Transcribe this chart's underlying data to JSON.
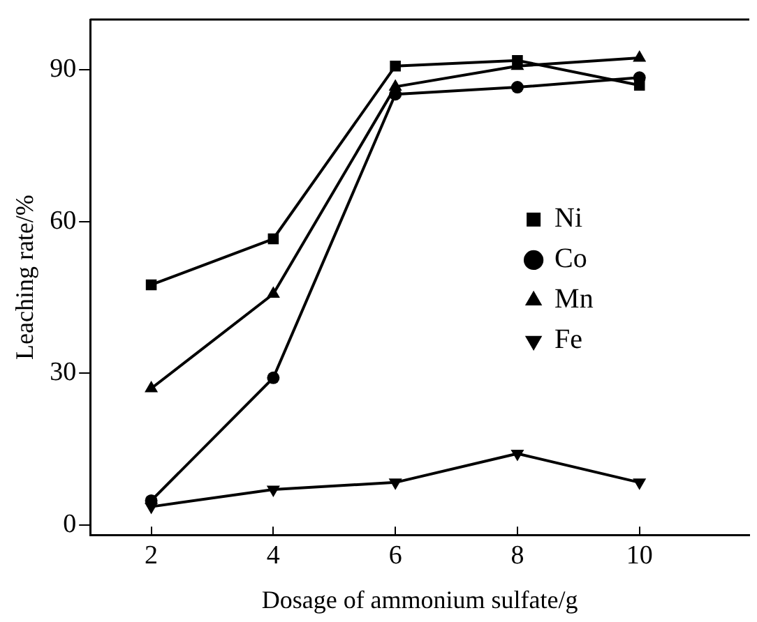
{
  "chart_data": {
    "type": "line",
    "xlabel": "Dosage of ammonium sulfate/g",
    "ylabel": "Leaching rate/%",
    "x": [
      2,
      4,
      6,
      8,
      10
    ],
    "xlim": [
      1,
      11.8
    ],
    "xticks": [
      2,
      4,
      6,
      8,
      10
    ],
    "ylim": [
      -2,
      100
    ],
    "yticks": [
      0,
      30,
      60,
      90
    ],
    "grid": false,
    "legend": "right",
    "line_style": "solid",
    "series": [
      {
        "name": "Ni",
        "color": "#000000",
        "marker": "square",
        "values": [
          47.5,
          56.6,
          90.8,
          91.9,
          87.0
        ]
      },
      {
        "name": "Co",
        "color": "#000000",
        "marker": "circle",
        "values": [
          4.8,
          29.1,
          85.2,
          86.6,
          88.5
        ]
      },
      {
        "name": "Mn",
        "color": "#000000",
        "marker": "triangle",
        "values": [
          27.0,
          45.7,
          86.7,
          90.8,
          92.4
        ]
      },
      {
        "name": "Fe",
        "color": "#000000",
        "marker": "triangle-down",
        "values": [
          3.6,
          7.0,
          8.4,
          14.1,
          8.4
        ]
      }
    ]
  }
}
